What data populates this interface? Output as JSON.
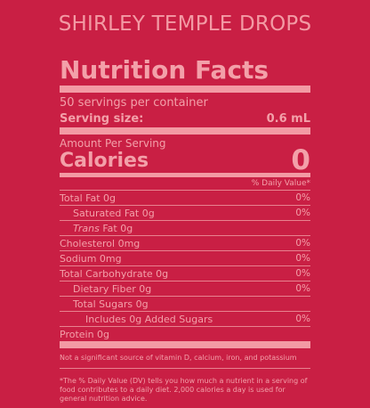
{
  "product": {
    "title": "SHIRLEY TEMPLE DROPS"
  },
  "label": {
    "heading": "Nutrition Facts",
    "servings_per_container": "50 servings per container",
    "serving_size_label": "Serving size:",
    "serving_size_value": "0.6 mL",
    "amount_per_serving": "Amount Per Serving",
    "calories_label": "Calories",
    "calories_value": "0",
    "daily_value_header": "% Daily Value*"
  },
  "nutrients": [
    {
      "name": "Total Fat 0g",
      "pct": "0%"
    },
    {
      "name": "Saturated Fat 0g",
      "pct": "0%"
    },
    {
      "name_italic": "Trans",
      "name_rest": " Fat 0g",
      "pct": ""
    },
    {
      "name": "Cholesterol 0mg",
      "pct": "0%"
    },
    {
      "name": "Sodium 0mg",
      "pct": "0%"
    },
    {
      "name": "Total Carbohydrate 0g",
      "pct": "0%"
    },
    {
      "name": "Dietary Fiber 0g",
      "pct": "0%"
    },
    {
      "name": "Total Sugars 0g",
      "pct": ""
    },
    {
      "name": "Includes 0g Added Sugars",
      "pct": "0%"
    },
    {
      "name": "Protein 0g",
      "pct": ""
    }
  ],
  "footnotes": {
    "not_significant": "Not a significant source of vitamin D, calcium, iron, and potassium",
    "daily_value_note": "*The % Daily Value (DV) tells you how much a nutrient in a serving of food contributes to a daily diet. 2,000 calories a day is used for general nutrition advice."
  },
  "colors": {
    "background": "#c91f44",
    "text": "#f3a0a9"
  }
}
